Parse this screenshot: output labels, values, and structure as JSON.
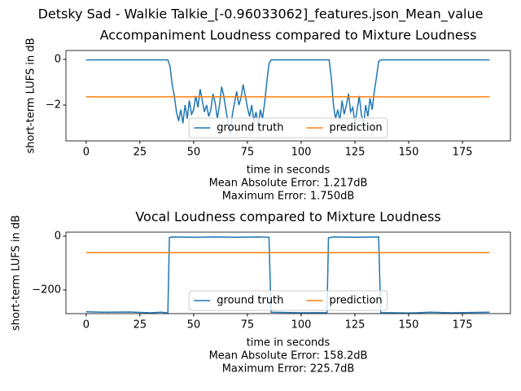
{
  "title": "Detsky Sad - Walkie Talkie_[-0.96033062]_features.json_Mean_value",
  "chart_data": [
    {
      "type": "line",
      "title": "Accompaniment Loudness compared to Mixture Loudness",
      "xlabel": "time in seconds",
      "ylabel": "short-term LUFS in dB",
      "annotations": [
        "Mean Absolute Error: 1.217dB",
        "Maximum Error: 1.750dB"
      ],
      "legend": "lower center",
      "xlim": [
        -9.4,
        197.3
      ],
      "xticks": [
        0,
        25,
        50,
        75,
        100,
        125,
        150,
        175
      ],
      "ylim": [
        -3.57,
        0.39
      ],
      "yticks": [
        {
          "value": -2,
          "label": "−2"
        },
        0
      ],
      "series": [
        {
          "name": "ground truth",
          "color": "#1f77b4",
          "x": [
            0,
            38,
            39,
            40,
            41,
            42,
            43,
            44,
            45,
            46,
            47,
            48,
            49,
            50,
            51,
            52,
            53,
            54,
            55,
            56,
            57,
            58,
            59,
            60,
            61,
            62,
            63,
            64,
            65,
            66,
            67,
            68,
            69,
            70,
            71,
            72,
            73,
            74,
            75,
            76,
            77,
            78,
            79,
            80,
            81,
            82,
            83,
            84,
            85,
            86,
            113,
            114,
            115,
            116,
            117,
            118,
            119,
            120,
            121,
            122,
            123,
            124,
            125,
            126,
            127,
            128,
            129,
            130,
            131,
            132,
            133,
            134,
            135,
            136,
            137,
            187.6
          ],
          "values": [
            -0.02,
            -0.02,
            -0.3,
            -1.1,
            -1.6,
            -2.3,
            -2.7,
            -2.2,
            -2.8,
            -2.0,
            -2.6,
            -1.8,
            -2.4,
            -2.2,
            -1.6,
            -2.1,
            -1.3,
            -1.8,
            -2.3,
            -2.0,
            -2.5,
            -2.2,
            -1.5,
            -1.9,
            -2.6,
            -2.0,
            -1.2,
            -1.6,
            -2.2,
            -2.8,
            -3.3,
            -2.4,
            -1.9,
            -1.4,
            -2.0,
            -1.7,
            -1.1,
            -1.6,
            -2.1,
            -2.5,
            -2.0,
            -2.7,
            -2.3,
            -2.9,
            -2.2,
            -2.6,
            -1.9,
            -1.0,
            -0.2,
            -0.02,
            -0.02,
            -0.8,
            -2.0,
            -2.6,
            -2.2,
            -2.7,
            -1.8,
            -2.4,
            -2.0,
            -1.5,
            -2.3,
            -2.1,
            -2.8,
            -2.2,
            -1.6,
            -2.4,
            -2.9,
            -2.0,
            -2.5,
            -1.7,
            -2.2,
            -1.4,
            -0.8,
            -0.1,
            -0.02,
            -0.02
          ]
        },
        {
          "name": "prediction",
          "color": "#ff7f0e",
          "x": [
            0,
            187.6
          ],
          "values": [
            -1.64,
            -1.64
          ]
        }
      ]
    },
    {
      "type": "line",
      "title": "Vocal Loudness compared to Mixture Loudness",
      "xlabel": "time in seconds",
      "ylabel": "short-term LUFS in dB",
      "annotations": [
        "Mean Absolute Error: 158.2dB",
        "Maximum Error: 225.7dB"
      ],
      "legend": "lower center",
      "xlim": [
        -9.4,
        197.3
      ],
      "xticks": [
        0,
        25,
        50,
        75,
        100,
        125,
        150,
        175
      ],
      "ylim": [
        -288,
        15
      ],
      "yticks": [
        {
          "value": -200,
          "label": "−200"
        },
        0
      ],
      "series": [
        {
          "name": "ground truth",
          "color": "#1f77b4",
          "x": [
            0,
            10,
            20,
            30,
            35,
            38,
            38.7,
            40,
            50,
            60,
            70,
            80,
            85,
            86,
            100,
            112,
            112.7,
            115,
            125,
            136,
            137,
            150,
            160,
            170,
            187.6
          ],
          "values": [
            -281,
            -283,
            -282,
            -285,
            -283,
            -286,
            -5,
            -3,
            -4,
            -3,
            -4,
            -3,
            -4,
            -283,
            -285,
            -284,
            -6,
            -3,
            -4,
            -3,
            -284,
            -286,
            -283,
            -285,
            -283
          ]
        },
        {
          "name": "prediction",
          "color": "#ff7f0e",
          "x": [
            0,
            187.6
          ],
          "values": [
            -61,
            -61
          ]
        }
      ]
    }
  ]
}
